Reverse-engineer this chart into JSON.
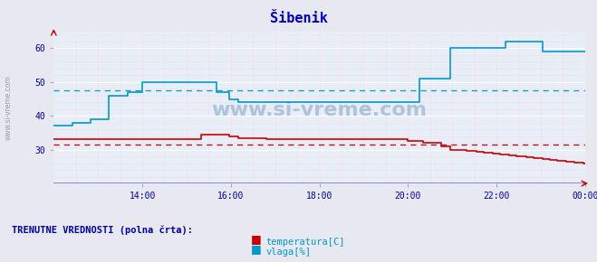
{
  "title": "Šibenik",
  "bg_color": "#e8e8f0",
  "plot_bg_color": "#e8eef8",
  "title_color": "#0000cc",
  "tick_color": "#0000aa",
  "watermark": "www.si-vreme.com",
  "xlim": [
    0,
    288
  ],
  "ylim": [
    20,
    65
  ],
  "yticks": [
    30,
    40,
    50,
    60
  ],
  "xtick_labels": [
    "14:00",
    "16:00",
    "18:00",
    "20:00",
    "22:00",
    "00:00"
  ],
  "xtick_positions": [
    48,
    96,
    144,
    192,
    240,
    288
  ],
  "temp_color": "#cc0000",
  "hum_color": "#0099cc",
  "temp_avg": 31.5,
  "hum_avg": 47.5,
  "legend_text": "TRENUTNE VREDNOSTI (polna črta):",
  "legend_color": "#0000aa",
  "temp_label": "temperatura[C]",
  "hum_label": "vlaga[%]",
  "font_family": "monospace",
  "grid_major_color": "#ffffff",
  "grid_minor_color": "#ffcccc",
  "bottom_line_color": "#8080cc",
  "arrow_color": "#cc0000",
  "watermark_color": "#4477aa",
  "watermark_alpha": 0.35
}
